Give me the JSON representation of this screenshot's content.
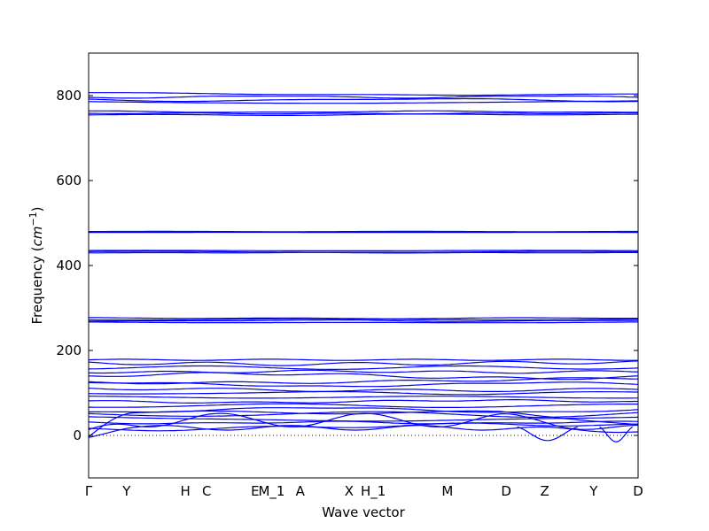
{
  "chart_data": {
    "type": "line",
    "xlabel": "Wave vector",
    "ylabel": "Frequency (cm^-1)",
    "ylabel_parts": {
      "prefix": "Frequency (",
      "base": "cm",
      "sup": "−1",
      "suffix": ")"
    },
    "ylim": [
      -100,
      900
    ],
    "yticks": [
      0,
      200,
      400,
      600,
      800
    ],
    "xlim": [
      0,
      1
    ],
    "xticks": [
      {
        "label": "Γ",
        "x": 0.0
      },
      {
        "label": "Y",
        "x": 0.069
      },
      {
        "label": "H",
        "x": 0.176
      },
      {
        "label": "C",
        "x": 0.215
      },
      {
        "label": "E",
        "x": 0.303
      },
      {
        "label": "M_1",
        "x": 0.333
      },
      {
        "label": "A",
        "x": 0.385
      },
      {
        "label": "X",
        "x": 0.474
      },
      {
        "label": "H_1",
        "x": 0.518
      },
      {
        "label": "M",
        "x": 0.653
      },
      {
        "label": "D",
        "x": 0.76
      },
      {
        "label": "Z",
        "x": 0.83
      },
      {
        "label": "Y",
        "x": 0.919
      },
      {
        "label": "D",
        "x": 1.0
      }
    ],
    "reference_line": {
      "y": 0,
      "style": "dotted"
    },
    "grid": false,
    "line_color": "#0000ff",
    "band_groups": [
      {
        "name": "acoustic",
        "base": [
          0,
          0,
          0
        ],
        "spread": 30
      },
      {
        "name": "low",
        "base": [
          20,
          30,
          40,
          50,
          60,
          70,
          80,
          90,
          100,
          110,
          120,
          130,
          140,
          150,
          160,
          170,
          178
        ],
        "spread": 14
      },
      {
        "name": "mid1",
        "base": [
          266,
          270,
          273,
          276
        ],
        "spread": 4
      },
      {
        "name": "mid2",
        "base": [
          430,
          432,
          435
        ],
        "spread": 3
      },
      {
        "name": "mid3",
        "base": [
          478,
          480
        ],
        "spread": 1.5
      },
      {
        "name": "high1",
        "base": [
          755,
          758,
          762
        ],
        "spread": 4
      },
      {
        "name": "high2",
        "base": [
          785,
          790,
          797,
          805
        ],
        "spread": 8
      }
    ],
    "soft_modes": [
      {
        "x_range": [
          0.78,
          0.89
        ],
        "min": -12
      },
      {
        "x_range": [
          0.93,
          0.99
        ],
        "min": -15
      }
    ]
  }
}
